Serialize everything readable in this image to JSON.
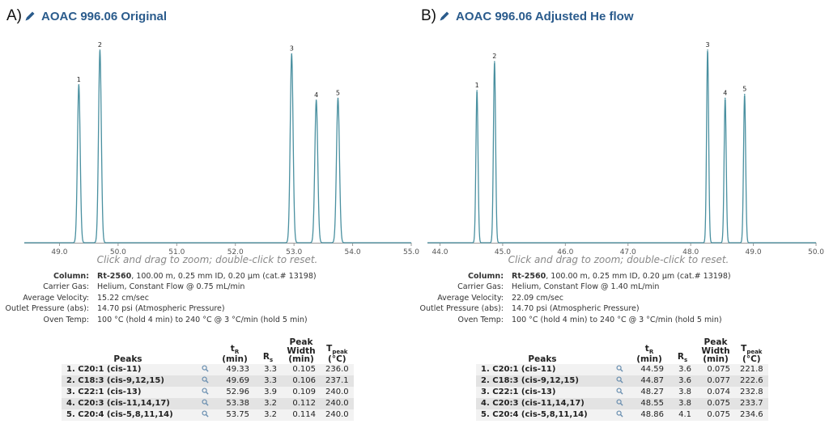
{
  "panels": [
    {
      "letter": "A)",
      "title": "AOAC 996.06 Original",
      "hint": "Click and drag to zoom; double-click to reset.",
      "conditions": [
        {
          "label": "Column:",
          "value_bold": "Rt-2560",
          "value": ", 100.00 m, 0.25 mm ID, 0.20 µm (cat.# 13198)"
        },
        {
          "label": "Carrier Gas:",
          "value_bold": "",
          "value": "Helium, Constant Flow @ 0.75 mL/min"
        },
        {
          "label": "Average Velocity:",
          "value_bold": "",
          "value": "15.22 cm/sec"
        },
        {
          "label": "Outlet Pressure (abs):",
          "value_bold": "",
          "value": "14.70 psi (Atmospheric Pressure)"
        },
        {
          "label": "Oven Temp:",
          "value_bold": "",
          "value": "100 °C (hold 4 min) to 240 °C @ 3 °C/min (hold 5 min)"
        }
      ],
      "table_headers": {
        "peaks": "Peaks",
        "tr": "t",
        "tr_sub": "R",
        "tr_unit": "(min)",
        "rs": "R",
        "rs_sub": "s",
        "width": "Peak Width (min)",
        "tpeak": "T",
        "tpeak_sub": "peak",
        "tpeak_unit": "(°C)"
      },
      "rows": [
        {
          "name": "1. C20:1 (cis-11)",
          "tr": "49.33",
          "rs": "3.3",
          "width": "0.105",
          "tpeak": "236.0"
        },
        {
          "name": "2. C18:3 (cis-9,12,15)",
          "tr": "49.69",
          "rs": "3.3",
          "width": "0.106",
          "tpeak": "237.1"
        },
        {
          "name": "3. C22:1 (cis-13)",
          "tr": "52.96",
          "rs": "3.9",
          "width": "0.109",
          "tpeak": "240.0"
        },
        {
          "name": "4. C20:3 (cis-11,14,17)",
          "tr": "53.38",
          "rs": "3.2",
          "width": "0.112",
          "tpeak": "240.0"
        },
        {
          "name": "5. C20:4 (cis-5,8,11,14)",
          "tr": "53.75",
          "rs": "3.2",
          "width": "0.114",
          "tpeak": "240.0"
        }
      ]
    },
    {
      "letter": "B)",
      "title": "AOAC 996.06 Adjusted He flow",
      "hint": "Click and drag to zoom; double-click to reset.",
      "conditions": [
        {
          "label": "Column:",
          "value_bold": "Rt-2560",
          "value": ", 100.00 m, 0.25 mm ID, 0.20 µm (cat.# 13198)"
        },
        {
          "label": "Carrier Gas:",
          "value_bold": "",
          "value": "Helium, Constant Flow @ 1.40 mL/min"
        },
        {
          "label": "Average Velocity:",
          "value_bold": "",
          "value": "22.09 cm/sec"
        },
        {
          "label": "Outlet Pressure (abs):",
          "value_bold": "",
          "value": "14.70 psi (Atmospheric Pressure)"
        },
        {
          "label": "Oven Temp:",
          "value_bold": "",
          "value": "100 °C (hold 4 min) to 240 °C @ 3 °C/min (hold 5 min)"
        }
      ],
      "table_headers": {
        "peaks": "Peaks",
        "tr": "t",
        "tr_sub": "R",
        "tr_unit": "(min)",
        "rs": "R",
        "rs_sub": "s",
        "width": "Peak Width (min)",
        "tpeak": "T",
        "tpeak_sub": "peak",
        "tpeak_unit": "(°C)"
      },
      "rows": [
        {
          "name": "1. C20:1 (cis-11)",
          "tr": "44.59",
          "rs": "3.6",
          "width": "0.075",
          "tpeak": "221.8"
        },
        {
          "name": "2. C18:3 (cis-9,12,15)",
          "tr": "44.87",
          "rs": "3.6",
          "width": "0.077",
          "tpeak": "222.6"
        },
        {
          "name": "3. C22:1 (cis-13)",
          "tr": "48.27",
          "rs": "3.8",
          "width": "0.074",
          "tpeak": "232.8"
        },
        {
          "name": "4. C20:3 (cis-11,14,17)",
          "tr": "48.55",
          "rs": "3.8",
          "width": "0.075",
          "tpeak": "233.7"
        },
        {
          "name": "5. C20:4 (cis-5,8,11,14)",
          "tr": "48.86",
          "rs": "4.1",
          "width": "0.075",
          "tpeak": "234.6"
        }
      ]
    }
  ],
  "chart_data": [
    {
      "type": "line",
      "xlim": [
        48.4,
        55.0
      ],
      "ylim": [
        0,
        1.05
      ],
      "xticks": [
        "49.0",
        "50.0",
        "51.0",
        "52.0",
        "53.0",
        "54.0",
        "55.0"
      ],
      "grid": false,
      "line_color": "#4a90a0",
      "peaks": [
        {
          "label": "1",
          "x": 49.33,
          "height": 0.82,
          "width": 0.105
        },
        {
          "label": "2",
          "x": 49.69,
          "height": 1.0,
          "width": 0.106
        },
        {
          "label": "3",
          "x": 52.96,
          "height": 0.98,
          "width": 0.109
        },
        {
          "label": "4",
          "x": 53.38,
          "height": 0.74,
          "width": 0.112
        },
        {
          "label": "5",
          "x": 53.75,
          "height": 0.75,
          "width": 0.114
        }
      ]
    },
    {
      "type": "line",
      "xlim": [
        43.8,
        50.0
      ],
      "ylim": [
        0,
        1.05
      ],
      "xticks": [
        "44.0",
        "45.0",
        "46.0",
        "47.0",
        "48.0",
        "49.0",
        "50.0"
      ],
      "grid": false,
      "line_color": "#4a90a0",
      "peaks": [
        {
          "label": "1",
          "x": 44.59,
          "height": 0.79,
          "width": 0.075
        },
        {
          "label": "2",
          "x": 44.87,
          "height": 0.94,
          "width": 0.077
        },
        {
          "label": "3",
          "x": 48.27,
          "height": 1.0,
          "width": 0.074
        },
        {
          "label": "4",
          "x": 48.55,
          "height": 0.75,
          "width": 0.075
        },
        {
          "label": "5",
          "x": 48.86,
          "height": 0.77,
          "width": 0.075
        }
      ]
    }
  ]
}
